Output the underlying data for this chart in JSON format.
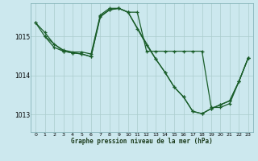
{
  "xlabel": "Graphe pression niveau de la mer (hPa)",
  "background_color": "#cce8ee",
  "grid_color": "#aacccc",
  "line_color": "#1a5e2a",
  "ylim": [
    1012.55,
    1015.85
  ],
  "yticks": [
    1013,
    1014,
    1015
  ],
  "xlim": [
    -0.5,
    23.5
  ],
  "xticks": [
    0,
    1,
    2,
    3,
    4,
    5,
    6,
    7,
    8,
    9,
    10,
    11,
    12,
    13,
    14,
    15,
    16,
    17,
    18,
    19,
    20,
    21,
    22,
    23
  ],
  "series1_x": [
    0,
    1,
    2,
    3,
    4,
    5,
    6,
    7,
    8,
    9,
    10,
    11,
    12,
    13,
    14,
    15,
    16,
    17,
    18,
    19,
    20,
    21,
    22,
    23
  ],
  "series1_y": [
    1015.35,
    1015.1,
    1014.8,
    1014.65,
    1014.6,
    1014.6,
    1014.55,
    1015.55,
    1015.72,
    1015.72,
    1015.62,
    1015.62,
    1014.62,
    1014.62,
    1014.62,
    1014.62,
    1014.62,
    1014.62,
    1014.62,
    1013.18,
    1013.18,
    1013.28,
    1013.85,
    1014.45
  ],
  "series2_x": [
    0,
    1,
    2,
    3,
    4,
    5,
    6,
    7,
    8,
    9,
    10,
    11,
    12,
    13,
    14,
    15,
    16,
    17,
    18,
    19,
    20,
    21,
    22,
    23
  ],
  "series2_y": [
    1015.35,
    1015.0,
    1014.72,
    1014.62,
    1014.58,
    1014.55,
    1014.48,
    1015.52,
    1015.68,
    1015.72,
    1015.62,
    1015.2,
    1014.78,
    1014.42,
    1014.08,
    1013.7,
    1013.45,
    1013.08,
    1013.02,
    1013.15,
    1013.25,
    1013.35,
    1013.85,
    1014.45
  ],
  "series3_x": [
    1,
    3,
    4,
    5,
    6,
    7,
    8,
    9,
    10,
    13,
    14,
    15,
    16,
    17,
    18,
    19,
    20,
    21,
    22,
    23
  ],
  "series3_y": [
    1015.0,
    1014.62,
    1014.58,
    1014.55,
    1014.48,
    1015.5,
    1015.68,
    1015.72,
    1015.62,
    1014.42,
    1014.08,
    1013.7,
    1013.45,
    1013.08,
    1013.02,
    1013.15,
    1013.25,
    1013.35,
    1013.85,
    1014.45
  ]
}
